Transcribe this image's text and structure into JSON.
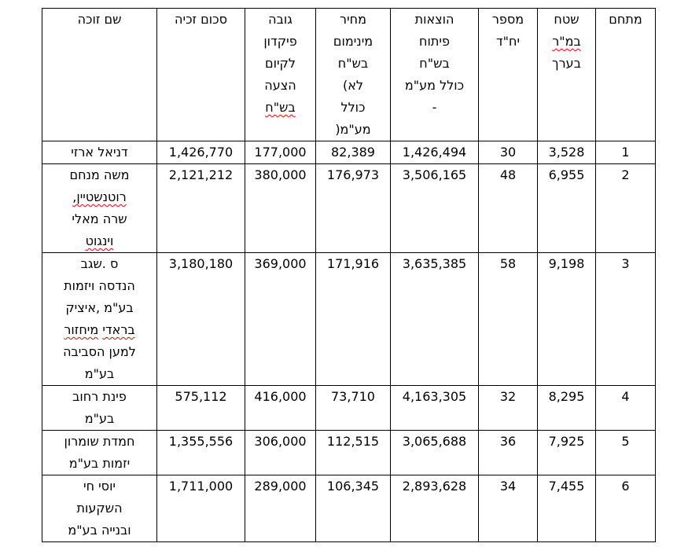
{
  "page": {
    "background": "#ffffff"
  },
  "table": {
    "border_color": "#000000",
    "text_color": "#000000",
    "spellcheck_color": "#ff0000",
    "columns": [
      {
        "key": "mitcham",
        "label": "מתחם",
        "marks": []
      },
      {
        "key": "area",
        "label": "שטח\nבמ\"ר\nבערך",
        "marks": [
          "במ\"ר"
        ]
      },
      {
        "key": "units",
        "label": "מספר\nיח\"ד",
        "marks": []
      },
      {
        "key": "dev-costs",
        "label": "הוצאות\nפיתוח\nבש\"ח\nכולל מע\"מ\n-",
        "marks": []
      },
      {
        "key": "min-price",
        "label": "מחיר\nמינימום\nבש\"ח\nלא)\nכולל\nמע\"מ(",
        "marks": []
      },
      {
        "key": "deposit",
        "label": "גובה\nפיקדון\nלקיום\nהצעה\nבש\"ח",
        "marks": [
          "בש\"ח"
        ]
      },
      {
        "key": "win-sum",
        "label": "סכום זכיה",
        "marks": []
      },
      {
        "key": "winner",
        "label": "שם זוכה",
        "marks": []
      }
    ],
    "rows": [
      {
        "cells": [
          "1",
          "3,528",
          "30",
          "1,426,494",
          "82,389",
          "177,000",
          "1,426,770",
          "דניאל ארזי"
        ],
        "winner_marks": []
      },
      {
        "cells": [
          "2",
          "6,955",
          "48",
          "3,506,165",
          "176,973",
          "380,000",
          "2,121,212",
          "משה מנחם\nרוטנשטיין,\nשרה מאלי\nוינגוט"
        ],
        "winner_marks": [
          "רוטנשטיין,",
          "וינגוט"
        ]
      },
      {
        "cells": [
          "3",
          "9,198",
          "58",
          "3,635,385",
          "171,916",
          "369,000",
          "3,180,180",
          "ס .שגב\nהנדסה ויזמות\nבע\"מ ,איציק\nבראדי מיחזור\nלמען הסביבה\nבע\"מ"
        ],
        "winner_marks": [
          "בראדי",
          "מיחזור"
        ]
      },
      {
        "cells": [
          "4",
          "8,295",
          "32",
          "4,163,305",
          "73,710",
          "416,000",
          "575,112",
          "פינת רחוב\nבע\"מ"
        ],
        "winner_marks": []
      },
      {
        "cells": [
          "5",
          "7,925",
          "36",
          "3,065,688",
          "112,515",
          "306,000",
          "1,355,556",
          "חמדת שומרון\nיזמות בע\"מ"
        ],
        "winner_marks": []
      },
      {
        "cells": [
          "6",
          "7,455",
          "34",
          "2,893,628",
          "106,345",
          "289,000",
          "1,711,000",
          "יוסי חי\nהשקעות\nובנייה בע\"מ"
        ],
        "winner_marks": []
      }
    ]
  }
}
